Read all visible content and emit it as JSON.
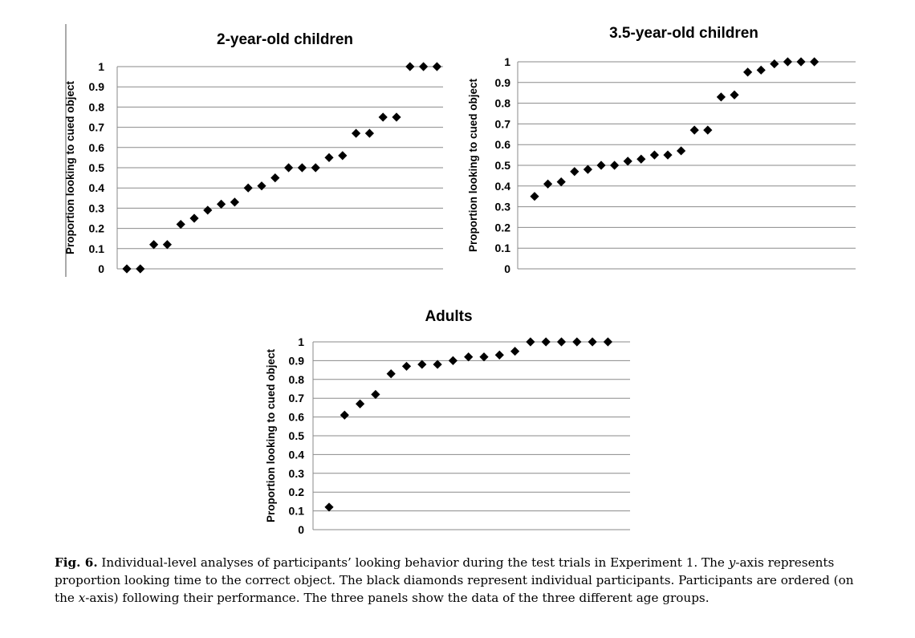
{
  "chart_data": [
    {
      "type": "scatter",
      "title": "2-year-old children",
      "xlabel": "",
      "ylabel": "Proportion looking to cued object",
      "ylim": [
        0,
        1
      ],
      "yticks": [
        "0",
        "0.1",
        "0.2",
        "0.3",
        "0.4",
        "0.5",
        "0.6",
        "0.7",
        "0.8",
        "0.9",
        "1"
      ],
      "grid": true,
      "marker": "diamond",
      "marker_color": "#000000",
      "x": [
        1,
        2,
        3,
        4,
        5,
        6,
        7,
        8,
        9,
        10,
        11,
        12,
        13,
        14,
        15,
        16,
        17,
        18,
        19,
        20,
        21,
        22,
        23,
        24
      ],
      "values": [
        0,
        0,
        0.12,
        0.12,
        0.22,
        0.25,
        0.29,
        0.32,
        0.33,
        0.4,
        0.41,
        0.45,
        0.5,
        0.5,
        0.5,
        0.55,
        0.56,
        0.67,
        0.67,
        0.75,
        0.75,
        1,
        1,
        1
      ]
    },
    {
      "type": "scatter",
      "title": "3.5-year-old children",
      "xlabel": "",
      "ylabel": "Proportion looking to cued object",
      "ylim": [
        0,
        1
      ],
      "yticks": [
        "0",
        "0.1",
        "0.2",
        "0.3",
        "0.4",
        "0.5",
        "0.6",
        "0.7",
        "0.8",
        "0.9",
        "1"
      ],
      "grid": true,
      "marker": "diamond",
      "marker_color": "#000000",
      "x": [
        1,
        2,
        3,
        4,
        5,
        6,
        7,
        8,
        9,
        10,
        11,
        12,
        13,
        14,
        15,
        16,
        17,
        18,
        19,
        20,
        21,
        22
      ],
      "values": [
        0.35,
        0.41,
        0.42,
        0.47,
        0.48,
        0.5,
        0.5,
        0.52,
        0.53,
        0.55,
        0.55,
        0.57,
        0.67,
        0.67,
        0.83,
        0.84,
        0.95,
        0.96,
        0.99,
        1,
        1,
        1
      ]
    },
    {
      "type": "scatter",
      "title": "Adults",
      "xlabel": "",
      "ylabel": "Proportion looking to cued object",
      "ylim": [
        0,
        1
      ],
      "yticks": [
        "0",
        "0.1",
        "0.2",
        "0.3",
        "0.4",
        "0.5",
        "0.6",
        "0.7",
        "0.8",
        "0.9",
        "1"
      ],
      "grid": true,
      "marker": "diamond",
      "marker_color": "#000000",
      "x": [
        1,
        2,
        3,
        4,
        5,
        6,
        7,
        8,
        9,
        10,
        11,
        12,
        13,
        14,
        15,
        16,
        17,
        18,
        19
      ],
      "values": [
        0.12,
        0.61,
        0.67,
        0.72,
        0.83,
        0.87,
        0.88,
        0.88,
        0.9,
        0.92,
        0.92,
        0.93,
        0.95,
        1,
        1,
        1,
        1,
        1,
        1
      ]
    }
  ],
  "caption": {
    "label": "Fig. 6.",
    "text_1": " Individual-level analyses of participants’ looking behavior during the test trials in Experiment 1. The ",
    "y_italic": "y",
    "text_2": "-axis represents proportion looking time to the correct object. The black diamonds represent individual participants. Participants are ordered (on the ",
    "x_italic": "x",
    "text_3": "-axis) following their performance. The three panels show the data of the three different age groups."
  }
}
